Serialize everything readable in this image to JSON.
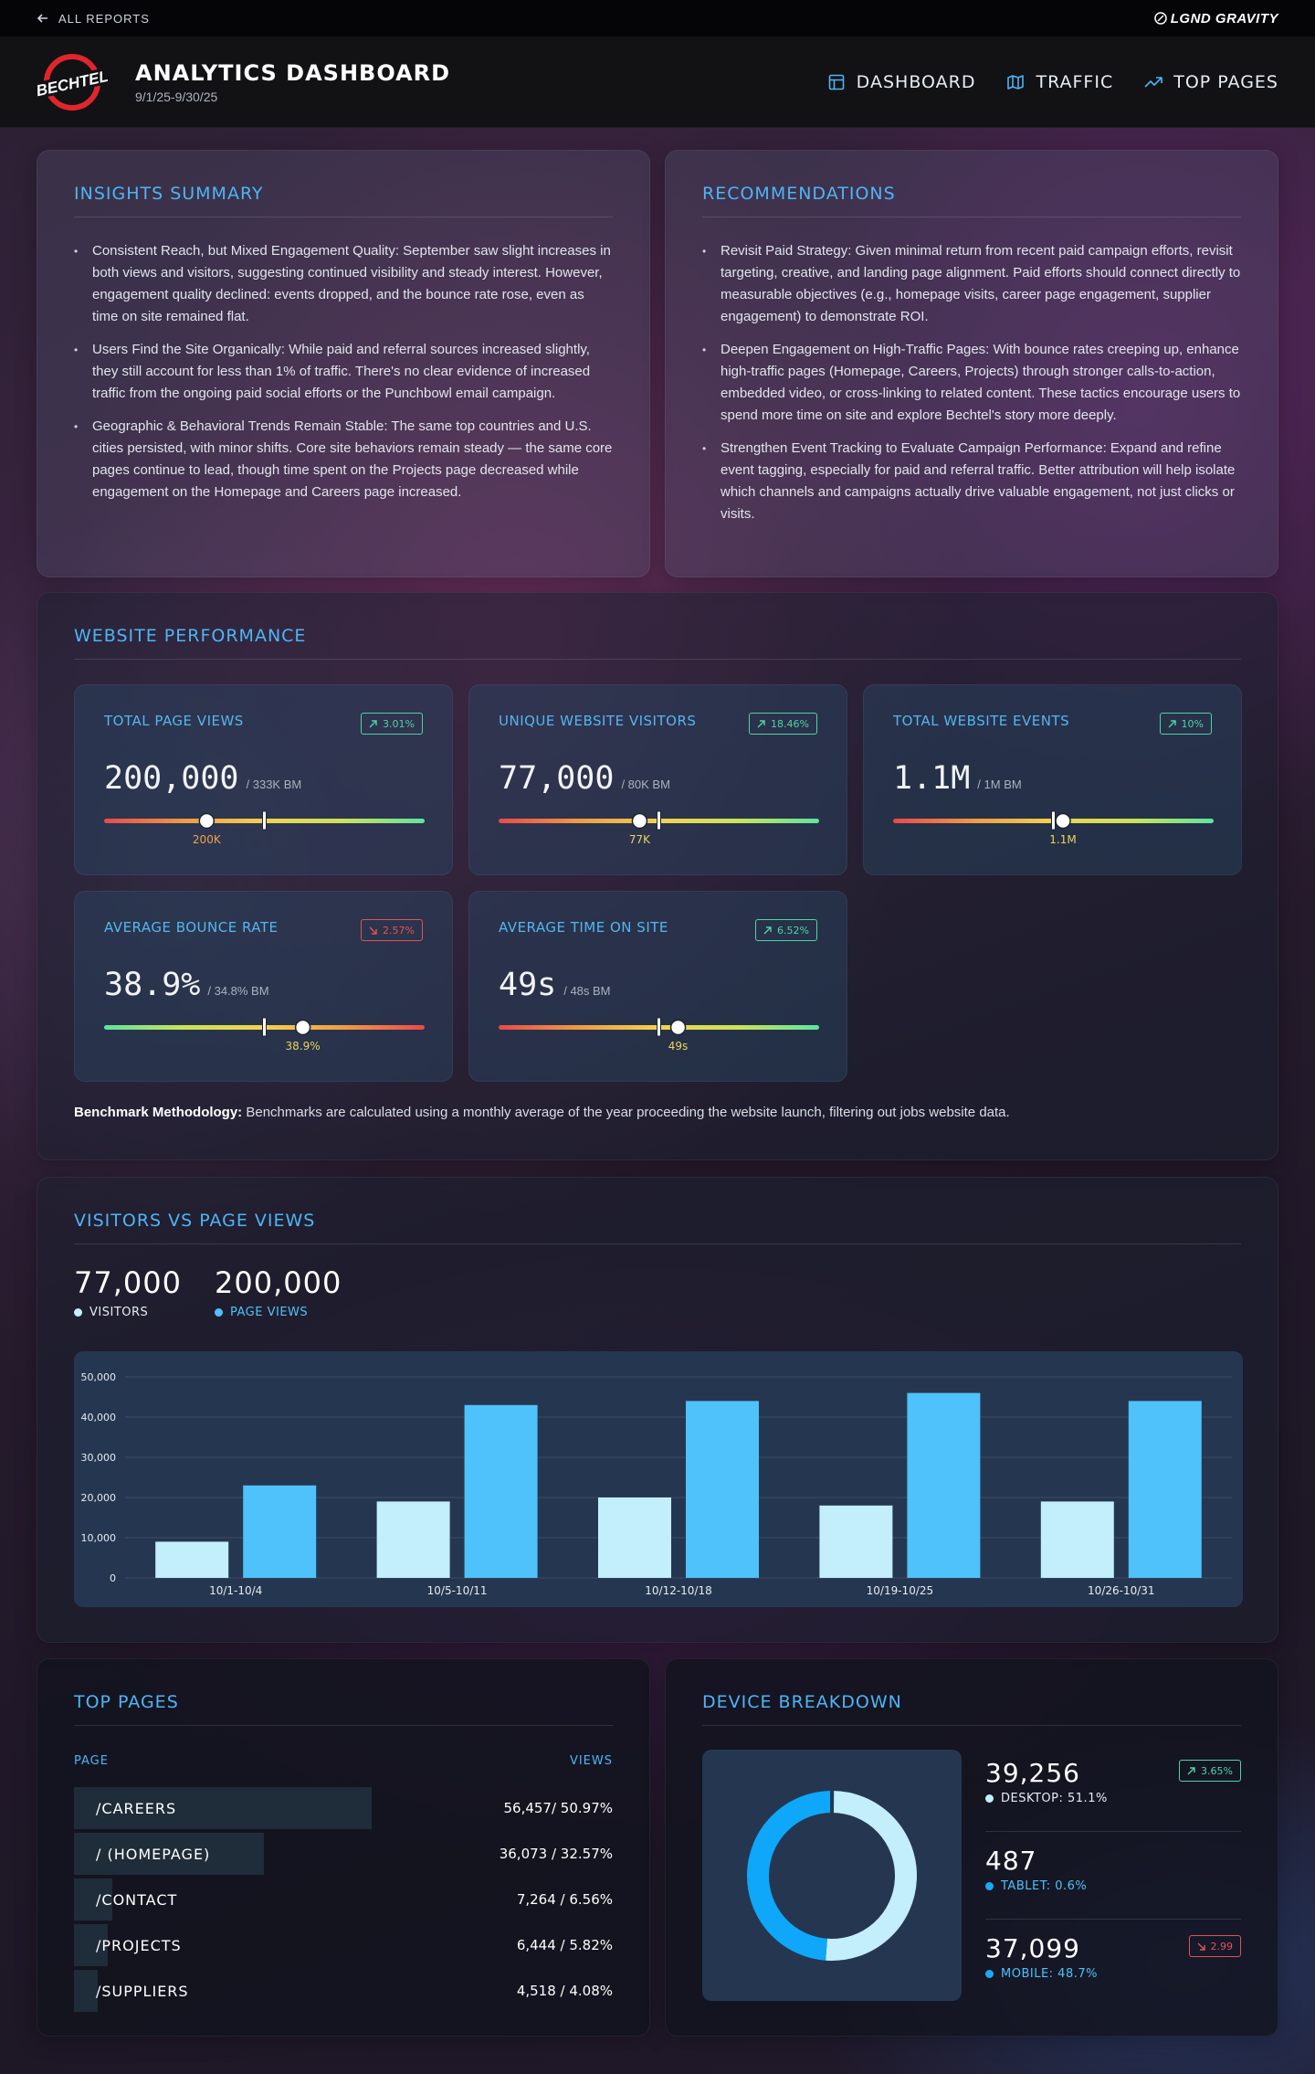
{
  "topbar": {
    "back_label": "ALL REPORTS",
    "brand": "LGND GRAVITY"
  },
  "header": {
    "logo_text": "BECHTEL",
    "title": "ANALYTICS DASHBOARD",
    "date_range": "9/1/25-9/30/25",
    "nav": [
      {
        "label": "DASHBOARD",
        "icon": "layout-icon"
      },
      {
        "label": "TRAFFIC",
        "icon": "map-icon"
      },
      {
        "label": "TOP PAGES",
        "icon": "trending-up-icon"
      }
    ]
  },
  "insights": {
    "title": "INSIGHTS SUMMARY",
    "items": [
      "Consistent Reach, but Mixed Engagement Quality: September saw slight increases in both views and visitors, suggesting continued visibility and steady interest. However, engagement quality declined: events dropped, and the bounce rate rose, even as time on site remained flat.",
      "Users Find the Site Organically: While paid and referral sources increased slightly, they still account for less than 1% of traffic. There's no clear evidence of increased traffic from the ongoing paid social efforts or the Punchbowl email campaign.",
      "Geographic & Behavioral Trends Remain Stable: The same top countries and U.S. cities persisted, with minor shifts. Core site behaviors remain steady — the same core pages continue to lead, though time spent on the Projects page decreased while engagement on the Homepage and Careers page increased."
    ]
  },
  "recommendations": {
    "title": "RECOMMENDATIONS",
    "items": [
      "Revisit Paid Strategy: Given minimal return from recent paid campaign efforts, revisit targeting, creative, and landing page alignment. Paid efforts should connect directly to measurable objectives (e.g., homepage visits, career page engagement, supplier engagement) to demonstrate ROI.",
      "Deepen Engagement on High-Traffic Pages: With bounce rates creeping up, enhance high-traffic pages (Homepage, Careers, Projects) through stronger calls-to-action, embedded video, or cross-linking to related content. These tactics encourage users to spend more time on site and explore Bechtel's story more deeply.",
      "Strengthen Event Tracking to Evaluate Campaign Performance: Expand and refine event tagging, especially for paid and referral traffic. Better attribution will help isolate which channels and campaigns actually drive valuable engagement, not just clicks or visits."
    ]
  },
  "performance": {
    "title": "WEBSITE PERFORMANCE",
    "metrics": [
      {
        "label": "TOTAL PAGE VIEWS",
        "badge": "3.01%",
        "direction": "up",
        "value": "200,000",
        "benchmark": "/ 333K BM",
        "marker_label": "200K",
        "marker_color": "#f0a24a",
        "value_pos": 0.32,
        "bm_pos": 0.5,
        "scale": "red-green"
      },
      {
        "label": "UNIQUE WEBSITE VISITORS",
        "badge": "18.46%",
        "direction": "up",
        "value": "77,000",
        "benchmark": "/ 80K BM",
        "marker_label": "77K",
        "marker_color": "#e8d55a",
        "value_pos": 0.44,
        "bm_pos": 0.5,
        "scale": "red-green"
      },
      {
        "label": "TOTAL WEBSITE EVENTS",
        "badge": "10%",
        "direction": "up",
        "value": "1.1M",
        "benchmark": "/ 1M BM",
        "marker_label": "1.1M",
        "marker_color": "#e8d55a",
        "value_pos": 0.53,
        "bm_pos": 0.5,
        "scale": "red-green"
      },
      {
        "label": "AVERAGE BOUNCE RATE",
        "badge": "2.57%",
        "direction": "down",
        "value": "38.9%",
        "benchmark": "/ 34.8% BM",
        "marker_label": "38.9%",
        "marker_color": "#e8d55a",
        "value_pos": 0.62,
        "bm_pos": 0.5,
        "scale": "green-red"
      },
      {
        "label": "AVERAGE TIME ON SITE",
        "badge": "6.52%",
        "direction": "up",
        "value": "49s",
        "benchmark": "/ 48s BM",
        "marker_label": "49s",
        "marker_color": "#e8d55a",
        "value_pos": 0.56,
        "bm_pos": 0.5,
        "scale": "red-green"
      }
    ],
    "methodology_label": "Benchmark Methodology:",
    "methodology_text": " Benchmarks are calculated using a monthly average of the year proceeding the website launch, filtering out jobs website data."
  },
  "visitors_vs_views": {
    "title": "VISITORS VS PAGE VIEWS",
    "visitors_total": "77,000",
    "visitors_label": "VISITORS",
    "views_total": "200,000",
    "views_label": "PAGE VIEWS",
    "visitors_color": "#c3eefc",
    "views_color": "#4fc1fb"
  },
  "chart_data": {
    "type": "bar",
    "categories": [
      "10/1-10/4",
      "10/5-10/11",
      "10/12-10/18",
      "10/19-10/25",
      "10/26-10/31"
    ],
    "series": [
      {
        "name": "VISITORS",
        "values": [
          9000,
          19000,
          20000,
          18000,
          19000
        ]
      },
      {
        "name": "PAGE VIEWS",
        "values": [
          23000,
          43000,
          44000,
          46000,
          44000
        ]
      }
    ],
    "yticks": [
      "0",
      "10,000",
      "20,000",
      "30,000",
      "40,000",
      "50,000"
    ],
    "ylim": [
      0,
      50000
    ],
    "grid": true
  },
  "top_pages": {
    "title": "TOP PAGES",
    "col_page": "PAGE",
    "col_views": "VIEWS",
    "rows": [
      {
        "page": "/CAREERS",
        "views": "56,457/ 50.97%",
        "share": 0.5097
      },
      {
        "page": "/ (HOMEPAGE)",
        "views": "36,073 / 32.57%",
        "share": 0.3257
      },
      {
        "page": "/CONTACT",
        "views": "7,264 / 6.56%",
        "share": 0.0656
      },
      {
        "page": "/PROJECTS",
        "views": "6,444 / 5.82%",
        "share": 0.0582
      },
      {
        "page": "/SUPPLIERS",
        "views": "4,518 / 4.08%",
        "share": 0.0408
      }
    ]
  },
  "devices": {
    "title": "DEVICE BREAKDOWN",
    "items": [
      {
        "value": "39,256",
        "label": "DESKTOP: 51.1%",
        "share": 0.511,
        "color": "#c3eefc",
        "badge": "3.65%",
        "direction": "up"
      },
      {
        "value": "487",
        "label": "TABLET: 0.6%",
        "share": 0.006,
        "color": "#71c3ec",
        "badge": "",
        "direction": ""
      },
      {
        "value": "37,099",
        "label": "MOBILE: 48.7%",
        "share": 0.487,
        "color": "#0ea7fa",
        "badge": "2.99",
        "direction": "down"
      }
    ]
  }
}
